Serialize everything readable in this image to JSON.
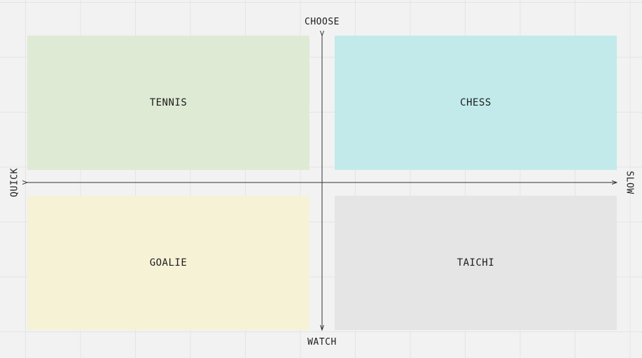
{
  "axes": {
    "top_label": "CHOOSE",
    "bottom_label": "WATCH",
    "left_label": "QUICK",
    "right_label": "SLOW",
    "line_color": "#333333"
  },
  "quadrants": {
    "top_left": {
      "label": "TENNIS",
      "color": "#dfead4"
    },
    "top_right": {
      "label": "CHESS",
      "color": "#c2eaea"
    },
    "bottom_left": {
      "label": "GOALIE",
      "color": "#f5f2d6"
    },
    "bottom_right": {
      "label": "TAICHI",
      "color": "#e5e5e5"
    }
  },
  "background": {
    "color": "#f2f2f2",
    "grid_color": "#e4e4e4"
  }
}
